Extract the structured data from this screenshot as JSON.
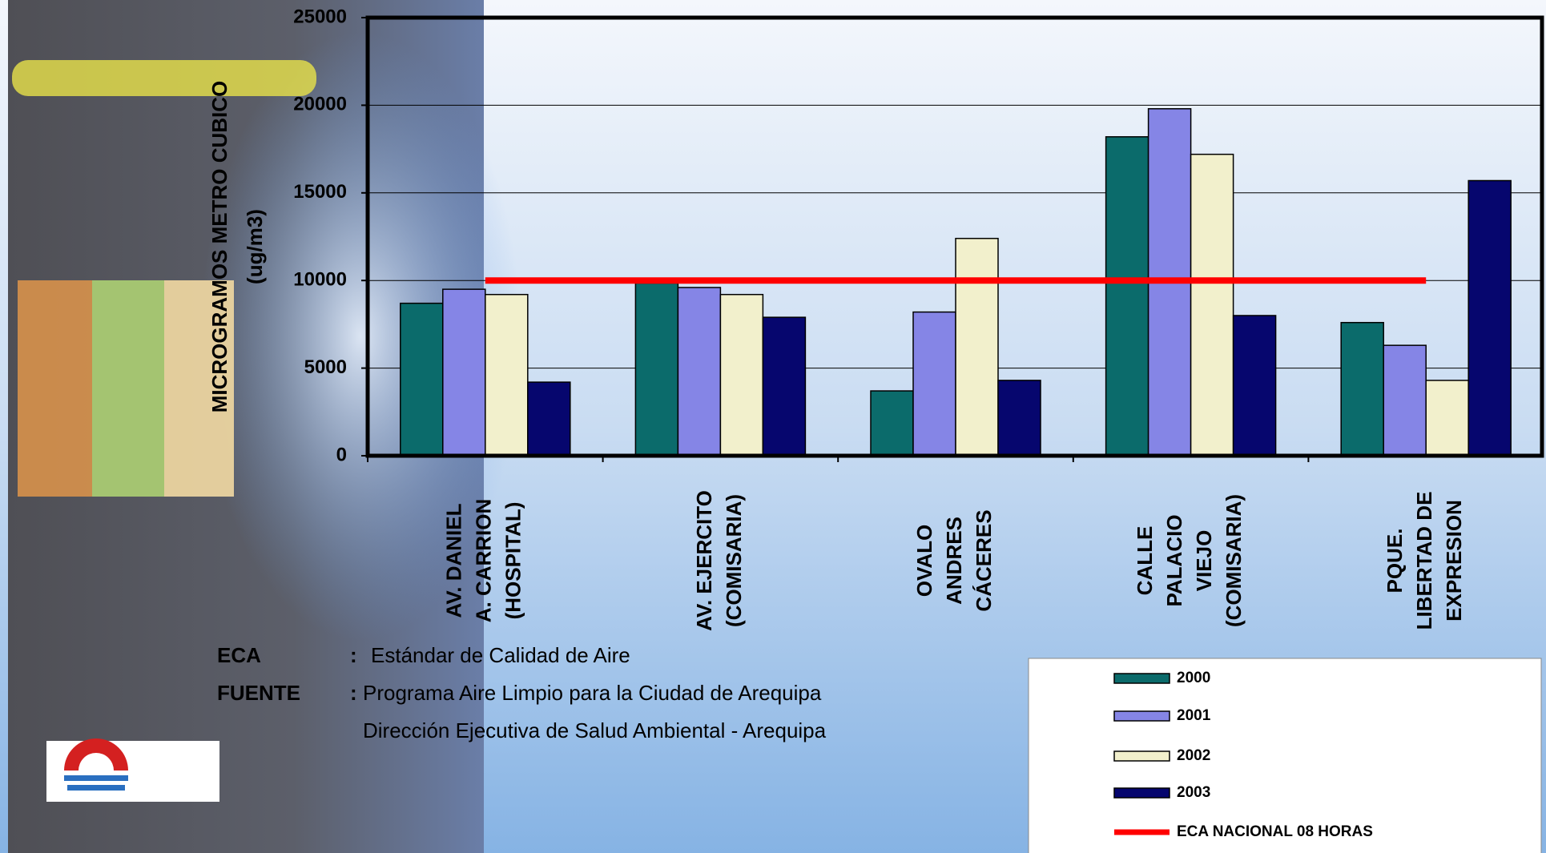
{
  "chart_data": {
    "type": "bar",
    "y_label": [
      "MICROGRAMOS METRO CUBICO",
      "(ug/m3)"
    ],
    "categories": [
      [
        "AV. DANIEL",
        "A. CARRION",
        "(HOSPITAL)"
      ],
      [
        "AV. EJERCITO",
        "(COMISARIA)"
      ],
      [
        "OVALO",
        "ANDRES",
        "CÁCERES"
      ],
      [
        "CALLE",
        "PALACIO",
        "VIEJO",
        "(COMISARIA)"
      ],
      [
        "PQUE.",
        "LIBERTAD DE",
        "EXPRESION"
      ]
    ],
    "series": [
      {
        "name": "2000",
        "color": "#0b6b6b",
        "values": [
          8700,
          9850,
          3700,
          18200,
          7600
        ]
      },
      {
        "name": "2001",
        "color": "#8585e6",
        "values": [
          9500,
          9600,
          8200,
          19800,
          6300
        ]
      },
      {
        "name": "2002",
        "color": "#f2f0cc",
        "values": [
          9200,
          9200,
          12400,
          17200,
          4300
        ]
      },
      {
        "name": "2003",
        "color": "#06066e",
        "values": [
          4200,
          7900,
          4300,
          8000,
          15700
        ]
      },
      {
        "name": "ECA NACIONAL 08 HORAS",
        "type": "line",
        "color": "#ff0000",
        "values": [
          10000,
          10000,
          10000,
          10000,
          10000
        ]
      }
    ],
    "ylim": [
      0,
      25000
    ],
    "yticks": [
      0,
      5000,
      10000,
      15000,
      20000,
      25000
    ],
    "grid": true,
    "legend": "bottom-right",
    "notes": [
      {
        "term": "ECA",
        "sep": ":",
        "lines": [
          "Estándar de Calidad de Aire"
        ]
      },
      {
        "term": "FUENTE",
        "sep": ":",
        "lines": [
          "Programa Aire Limpio para la Ciudad de Arequipa",
          "Dirección Ejecutiva de Salud Ambiental - Arequipa"
        ]
      }
    ]
  }
}
